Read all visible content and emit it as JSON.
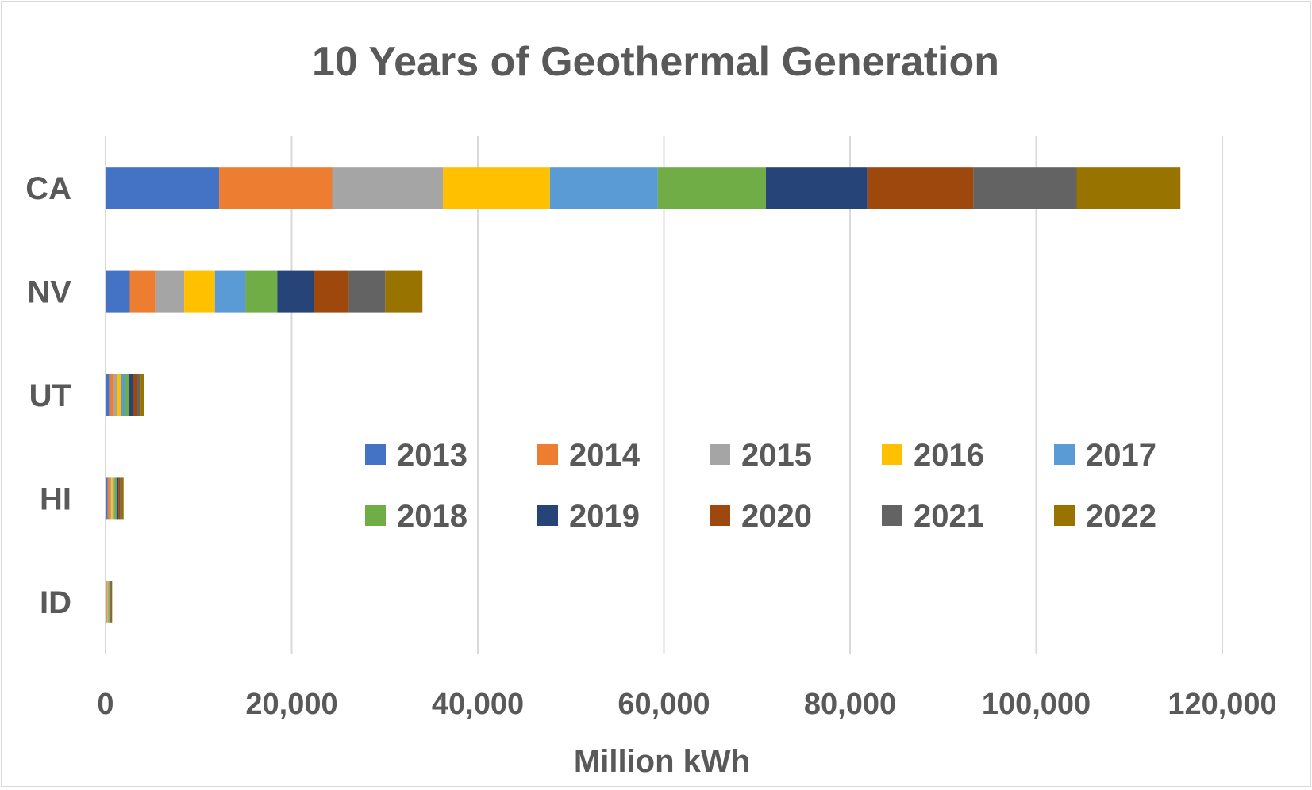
{
  "chart_data": {
    "type": "bar",
    "orientation": "horizontal",
    "stacked": true,
    "title": "10 Years of Geothermal Generation",
    "xlabel": "Million kWh",
    "ylabel": "",
    "categories": [
      "CA",
      "NV",
      "UT",
      "HI",
      "ID"
    ],
    "xlim": [
      0,
      120000
    ],
    "x_ticks": [
      0,
      20000,
      40000,
      60000,
      80000,
      100000,
      120000
    ],
    "x_tick_labels": [
      "0",
      "20,000",
      "40,000",
      "60,000",
      "80,000",
      "100,000",
      "120,000"
    ],
    "grid": "vertical-major",
    "legend_position": "inside-center-right",
    "series": [
      {
        "name": "2013",
        "color": "#4472C4",
        "values": [
          12200,
          2600,
          400,
          230,
          75
        ]
      },
      {
        "name": "2014",
        "color": "#ED7D31",
        "values": [
          12150,
          2750,
          420,
          190,
          80
        ]
      },
      {
        "name": "2015",
        "color": "#A5A5A5",
        "values": [
          11900,
          3100,
          420,
          190,
          70
        ]
      },
      {
        "name": "2016",
        "color": "#FFC000",
        "values": [
          11500,
          3300,
          420,
          190,
          70
        ]
      },
      {
        "name": "2017",
        "color": "#5B9BD5",
        "values": [
          11600,
          3300,
          420,
          190,
          70
        ]
      },
      {
        "name": "2018",
        "color": "#70AD47",
        "values": [
          11600,
          3400,
          420,
          190,
          70
        ]
      },
      {
        "name": "2019",
        "color": "#264478",
        "values": [
          10900,
          3900,
          420,
          190,
          65
        ]
      },
      {
        "name": "2020",
        "color": "#9E480E",
        "values": [
          11400,
          3800,
          420,
          190,
          70
        ]
      },
      {
        "name": "2021",
        "color": "#636363",
        "values": [
          11100,
          3900,
          420,
          190,
          70
        ]
      },
      {
        "name": "2022",
        "color": "#997300",
        "values": [
          11150,
          4000,
          420,
          190,
          70
        ]
      }
    ]
  }
}
